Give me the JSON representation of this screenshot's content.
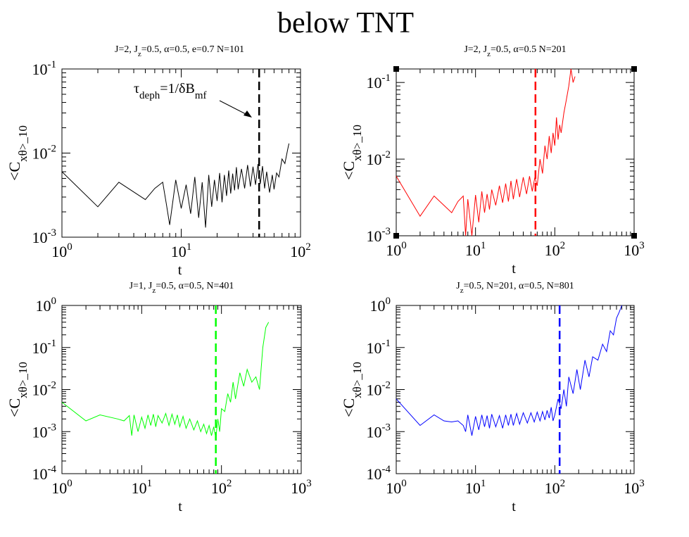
{
  "figure_title": "below TNT",
  "panel_color": "#000000",
  "chart_data": [
    {
      "type": "line",
      "subtitle": "J=2, J_z=0.5, α=0.5, e=0.7 N=101",
      "xlabel": "t",
      "ylabel": "<C_xθ>_10",
      "xscale": "log",
      "yscale": "log",
      "xlim": [
        1,
        100
      ],
      "ylim": [
        0.001,
        0.1
      ],
      "color": "#000000",
      "vline_x": 45,
      "annotation": "τ_deph=1/δB_mf",
      "corner_handles": false,
      "series": [
        {
          "x": [
            1,
            2,
            3,
            5,
            6,
            7,
            7.5,
            8,
            9,
            10,
            11,
            12,
            13,
            14,
            15,
            16,
            17,
            18,
            19,
            20,
            21,
            22,
            23,
            24,
            25,
            26,
            27,
            28,
            29,
            30,
            32,
            34,
            36,
            38,
            40,
            42,
            44,
            46,
            48,
            50,
            52,
            55,
            58,
            60,
            63,
            66,
            70,
            74,
            78,
            80
          ],
          "y": [
            0.006,
            0.0023,
            0.0045,
            0.0028,
            0.0038,
            0.0045,
            0.0025,
            0.0014,
            0.0048,
            0.0022,
            0.0042,
            0.0019,
            0.0052,
            0.0017,
            0.0045,
            0.0013,
            0.0055,
            0.0023,
            0.0048,
            0.0027,
            0.0058,
            0.0026,
            0.0055,
            0.0031,
            0.0062,
            0.0033,
            0.0057,
            0.0036,
            0.0068,
            0.0037,
            0.0065,
            0.0038,
            0.0072,
            0.004,
            0.0069,
            0.0042,
            0.0074,
            0.0043,
            0.007,
            0.0038,
            0.006,
            0.0034,
            0.0055,
            0.0037,
            0.0058,
            0.0052,
            0.0085,
            0.0075,
            0.011,
            0.013
          ]
        }
      ]
    },
    {
      "type": "line",
      "subtitle": "J=2, J_z=0.5, α=0.5 N=201",
      "xlabel": "t",
      "ylabel": "<C_xθ>_10",
      "xscale": "log",
      "yscale": "log",
      "xlim": [
        1,
        1000
      ],
      "ylim": [
        0.001,
        0.15
      ],
      "color": "#ff0000",
      "vline_x": 57,
      "corner_handles": true,
      "series": [
        {
          "x": [
            1,
            2,
            3,
            4,
            5,
            6,
            7,
            7.5,
            8,
            9,
            10,
            11,
            12,
            13,
            14,
            15,
            16,
            18,
            20,
            22,
            24,
            26,
            28,
            30,
            33,
            36,
            40,
            44,
            48,
            52,
            56,
            60,
            65,
            70,
            75,
            80,
            85,
            90,
            95,
            100,
            105,
            110,
            115,
            120,
            130,
            140,
            150,
            160,
            170,
            180
          ],
          "y": [
            0.006,
            0.0018,
            0.0033,
            0.0025,
            0.002,
            0.0028,
            0.0033,
            0.001,
            0.003,
            0.001,
            0.0034,
            0.0015,
            0.0038,
            0.002,
            0.0035,
            0.0022,
            0.004,
            0.0025,
            0.0045,
            0.0027,
            0.0048,
            0.0028,
            0.0052,
            0.003,
            0.0055,
            0.0032,
            0.0058,
            0.0035,
            0.006,
            0.0038,
            0.0058,
            0.0045,
            0.01,
            0.0065,
            0.015,
            0.01,
            0.02,
            0.012,
            0.022,
            0.015,
            0.035,
            0.018,
            0.028,
            0.022,
            0.04,
            0.06,
            0.09,
            0.15,
            0.1,
            0.12
          ]
        }
      ]
    },
    {
      "type": "line",
      "subtitle": "J=1, J_z=0.5, α=0.5, N=401",
      "xlabel": "t",
      "ylabel": "<C_xθ>_10",
      "xscale": "log",
      "yscale": "log",
      "xlim": [
        1,
        1000
      ],
      "ylim": [
        0.0001,
        1
      ],
      "color": "#00ff00",
      "vline_x": 85,
      "corner_handles": false,
      "series": [
        {
          "x": [
            1,
            2,
            3,
            5,
            6,
            7,
            7.5,
            8,
            9,
            10,
            11,
            12,
            13,
            14,
            15,
            16,
            18,
            20,
            22,
            24,
            26,
            28,
            30,
            33,
            36,
            40,
            45,
            50,
            55,
            60,
            65,
            70,
            75,
            80,
            85,
            90,
            95,
            100,
            110,
            120,
            130,
            140,
            150,
            170,
            190,
            210,
            240,
            270,
            300,
            330,
            360,
            390
          ],
          "y": [
            0.005,
            0.0018,
            0.0025,
            0.002,
            0.0018,
            0.0024,
            0.0008,
            0.0025,
            0.001,
            0.0022,
            0.0012,
            0.0025,
            0.0014,
            0.0026,
            0.0013,
            0.0024,
            0.0016,
            0.0027,
            0.0014,
            0.0026,
            0.0015,
            0.0025,
            0.0013,
            0.0023,
            0.0012,
            0.002,
            0.0011,
            0.0018,
            0.001,
            0.0015,
            0.0009,
            0.0014,
            0.0008,
            0.0013,
            0.0007,
            0.002,
            0.001,
            0.0035,
            0.003,
            0.008,
            0.005,
            0.015,
            0.006,
            0.025,
            0.012,
            0.03,
            0.015,
            0.02,
            0.01,
            0.1,
            0.3,
            0.4
          ]
        }
      ]
    },
    {
      "type": "line",
      "subtitle": "J_z=0.5, N=201, α=0.5, N=801",
      "xlabel": "t",
      "ylabel": "<C_xθ>_10",
      "xscale": "log",
      "yscale": "log",
      "xlim": [
        1,
        1000
      ],
      "ylim": [
        0.0001,
        1
      ],
      "color": "#0000ff",
      "vline_x": 115,
      "corner_handles": false,
      "series": [
        {
          "x": [
            1,
            2,
            3,
            4,
            5,
            6,
            7,
            7.5,
            8,
            9,
            10,
            11,
            12,
            13,
            14,
            15,
            16,
            18,
            20,
            22,
            24,
            26,
            28,
            30,
            33,
            36,
            40,
            45,
            50,
            55,
            60,
            65,
            70,
            75,
            80,
            85,
            90,
            95,
            100,
            110,
            120,
            130,
            140,
            150,
            170,
            190,
            210,
            240,
            270,
            300,
            350,
            400,
            450,
            500,
            550,
            600,
            650,
            700
          ],
          "y": [
            0.006,
            0.0014,
            0.0025,
            0.0018,
            0.0017,
            0.0018,
            0.0014,
            0.001,
            0.0025,
            0.0008,
            0.0023,
            0.0011,
            0.0025,
            0.0013,
            0.0024,
            0.0012,
            0.0026,
            0.0013,
            0.0024,
            0.0012,
            0.0025,
            0.0014,
            0.0026,
            0.0014,
            0.0027,
            0.0015,
            0.0028,
            0.0016,
            0.0028,
            0.0017,
            0.0029,
            0.0018,
            0.003,
            0.0019,
            0.0032,
            0.0021,
            0.0038,
            0.0018,
            0.0025,
            0.006,
            0.0035,
            0.01,
            0.004,
            0.02,
            0.008,
            0.03,
            0.01,
            0.05,
            0.02,
            0.06,
            0.05,
            0.12,
            0.08,
            0.25,
            0.2,
            0.5,
            0.7,
            1.0
          ]
        }
      ]
    }
  ]
}
